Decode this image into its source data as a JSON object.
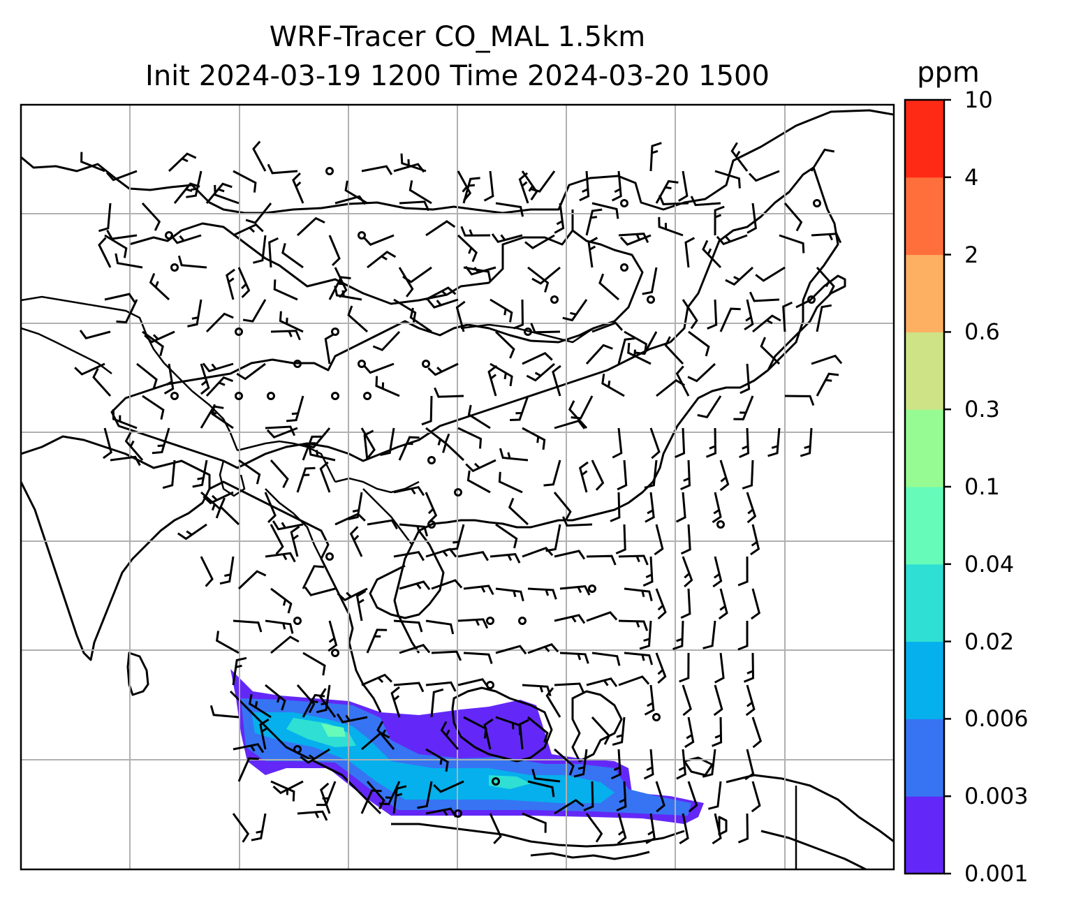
{
  "title": {
    "line1": "WRF-Tracer CO_MAL 1.5km",
    "line2": "Init 2024-03-19 1200 Time 2024-03-20 1500"
  },
  "colorbar": {
    "unit": "ppm",
    "levels": [
      "0.001",
      "0.003",
      "0.006",
      "0.02",
      "0.04",
      "0.1",
      "0.3",
      "0.6",
      "2",
      "4",
      "10"
    ],
    "colors": [
      "#6328f7",
      "#3674f3",
      "#05b0ec",
      "#2fdfd3",
      "#66fbb9",
      "#97fb93",
      "#cee386",
      "#fdaf62",
      "#ff6f3c",
      "#fe2a16"
    ]
  },
  "map": {
    "grid": true,
    "features": [
      "coastlines",
      "country-borders",
      "wind-barbs",
      "tracer-plume"
    ]
  }
}
